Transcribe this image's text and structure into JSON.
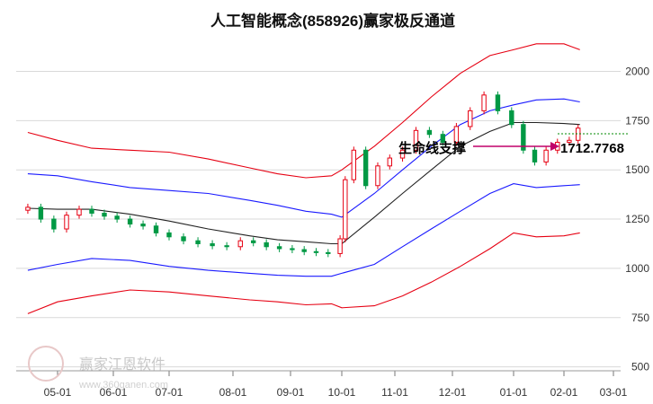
{
  "chart_data": {
    "type": "candlestick",
    "title": "人工智能概念(858926)赢家极反通道",
    "x_ticks": [
      "05-01",
      "06-01",
      "07-01",
      "08-01",
      "09-01",
      "10-01",
      "11-01",
      "12-01",
      "01-01",
      "02-01",
      "03-01"
    ],
    "y_ticks": [
      500,
      750,
      1000,
      1250,
      1500,
      1750,
      2000
    ],
    "ylim": [
      480,
      2180
    ],
    "annotation": "生命线支撑",
    "price_label": "1712.7768",
    "watermark": "赢家江恩软件",
    "watermark_url": "www.360ganen.com",
    "colors": {
      "up": "#e60012",
      "down": "#009944",
      "upper": "#e60012",
      "mid": "#1a1aff",
      "life": "#222222",
      "arrow": "#c0006a",
      "ref": "#008800"
    },
    "series": [
      {
        "name": "outer_upper",
        "color": "#e60012",
        "points": [
          [
            "04-15",
            1690
          ],
          [
            "05-01",
            1650
          ],
          [
            "05-20",
            1610
          ],
          [
            "06-10",
            1600
          ],
          [
            "07-01",
            1590
          ],
          [
            "07-20",
            1555
          ],
          [
            "08-10",
            1510
          ],
          [
            "08-25",
            1480
          ],
          [
            "09-10",
            1460
          ],
          [
            "09-25",
            1470
          ],
          [
            "10-01",
            1500
          ],
          [
            "10-20",
            1620
          ],
          [
            "11-05",
            1740
          ],
          [
            "11-20",
            1870
          ],
          [
            "12-05",
            1990
          ],
          [
            "12-20",
            2080
          ],
          [
            "01-01",
            2110
          ],
          [
            "01-15",
            2140
          ],
          [
            "02-01",
            2140
          ],
          [
            "02-10",
            2110
          ]
        ]
      },
      {
        "name": "upper_mid",
        "color": "#1a1aff",
        "points": [
          [
            "04-15",
            1480
          ],
          [
            "05-01",
            1470
          ],
          [
            "05-20",
            1440
          ],
          [
            "06-10",
            1410
          ],
          [
            "07-01",
            1395
          ],
          [
            "07-20",
            1380
          ],
          [
            "08-10",
            1345
          ],
          [
            "08-25",
            1320
          ],
          [
            "09-10",
            1290
          ],
          [
            "09-25",
            1275
          ],
          [
            "10-01",
            1260
          ],
          [
            "10-20",
            1380
          ],
          [
            "11-05",
            1500
          ],
          [
            "11-20",
            1620
          ],
          [
            "12-05",
            1730
          ],
          [
            "12-20",
            1800
          ],
          [
            "01-01",
            1830
          ],
          [
            "01-15",
            1855
          ],
          [
            "02-01",
            1860
          ],
          [
            "02-10",
            1845
          ]
        ]
      },
      {
        "name": "life_line",
        "color": "#222222",
        "points": [
          [
            "04-15",
            1305
          ],
          [
            "05-01",
            1300
          ],
          [
            "05-20",
            1300
          ],
          [
            "06-10",
            1275
          ],
          [
            "07-01",
            1240
          ],
          [
            "07-20",
            1200
          ],
          [
            "08-10",
            1165
          ],
          [
            "08-25",
            1145
          ],
          [
            "09-10",
            1135
          ],
          [
            "09-25",
            1125
          ],
          [
            "10-01",
            1125
          ],
          [
            "10-20",
            1260
          ],
          [
            "11-05",
            1380
          ],
          [
            "11-20",
            1500
          ],
          [
            "12-05",
            1620
          ],
          [
            "12-20",
            1695
          ],
          [
            "01-01",
            1740
          ],
          [
            "01-15",
            1740
          ],
          [
            "02-01",
            1735
          ],
          [
            "02-10",
            1730
          ]
        ]
      },
      {
        "name": "lower_mid",
        "color": "#1a1aff",
        "points": [
          [
            "04-15",
            990
          ],
          [
            "05-01",
            1020
          ],
          [
            "05-20",
            1050
          ],
          [
            "06-10",
            1040
          ],
          [
            "07-01",
            1010
          ],
          [
            "07-20",
            990
          ],
          [
            "08-10",
            975
          ],
          [
            "08-25",
            965
          ],
          [
            "09-10",
            960
          ],
          [
            "09-25",
            960
          ],
          [
            "10-01",
            975
          ],
          [
            "10-20",
            1020
          ],
          [
            "11-05",
            1110
          ],
          [
            "11-20",
            1200
          ],
          [
            "12-05",
            1290
          ],
          [
            "12-20",
            1380
          ],
          [
            "01-01",
            1430
          ],
          [
            "01-15",
            1410
          ],
          [
            "02-01",
            1420
          ],
          [
            "02-10",
            1425
          ]
        ]
      },
      {
        "name": "outer_lower",
        "color": "#e60012",
        "points": [
          [
            "04-15",
            770
          ],
          [
            "05-01",
            830
          ],
          [
            "05-20",
            860
          ],
          [
            "06-10",
            890
          ],
          [
            "07-01",
            880
          ],
          [
            "07-20",
            860
          ],
          [
            "08-10",
            840
          ],
          [
            "08-25",
            830
          ],
          [
            "09-10",
            815
          ],
          [
            "09-25",
            820
          ],
          [
            "10-01",
            800
          ],
          [
            "10-20",
            810
          ],
          [
            "11-05",
            860
          ],
          [
            "11-20",
            930
          ],
          [
            "12-05",
            1010
          ],
          [
            "12-20",
            1100
          ],
          [
            "01-01",
            1180
          ],
          [
            "01-15",
            1160
          ],
          [
            "02-01",
            1165
          ],
          [
            "02-10",
            1180
          ]
        ]
      }
    ],
    "candles_approx": [
      [
        "04-15",
        1310
      ],
      [
        "04-22",
        1250
      ],
      [
        "04-29",
        1200
      ],
      [
        "05-06",
        1270
      ],
      [
        "05-13",
        1300
      ],
      [
        "05-20",
        1280
      ],
      [
        "05-27",
        1265
      ],
      [
        "06-03",
        1250
      ],
      [
        "06-10",
        1225
      ],
      [
        "06-17",
        1215
      ],
      [
        "06-24",
        1180
      ],
      [
        "07-01",
        1160
      ],
      [
        "07-08",
        1140
      ],
      [
        "07-15",
        1125
      ],
      [
        "07-22",
        1115
      ],
      [
        "07-29",
        1110
      ],
      [
        "08-05",
        1140
      ],
      [
        "08-12",
        1130
      ],
      [
        "08-19",
        1110
      ],
      [
        "08-26",
        1100
      ],
      [
        "09-02",
        1095
      ],
      [
        "09-09",
        1085
      ],
      [
        "09-16",
        1080
      ],
      [
        "09-23",
        1075
      ],
      [
        "09-30",
        1150
      ],
      [
        "10-03",
        1450
      ],
      [
        "10-08",
        1600
      ],
      [
        "10-15",
        1420
      ],
      [
        "10-22",
        1520
      ],
      [
        "10-29",
        1560
      ],
      [
        "11-05",
        1600
      ],
      [
        "11-12",
        1700
      ],
      [
        "11-19",
        1680
      ],
      [
        "11-26",
        1640
      ],
      [
        "12-03",
        1720
      ],
      [
        "12-10",
        1800
      ],
      [
        "12-17",
        1880
      ],
      [
        "12-24",
        1800
      ],
      [
        "12-31",
        1730
      ],
      [
        "01-07",
        1600
      ],
      [
        "01-14",
        1540
      ],
      [
        "01-21",
        1600
      ],
      [
        "01-28",
        1640
      ],
      [
        "02-04",
        1650
      ],
      [
        "02-09",
        1712
      ]
    ]
  }
}
